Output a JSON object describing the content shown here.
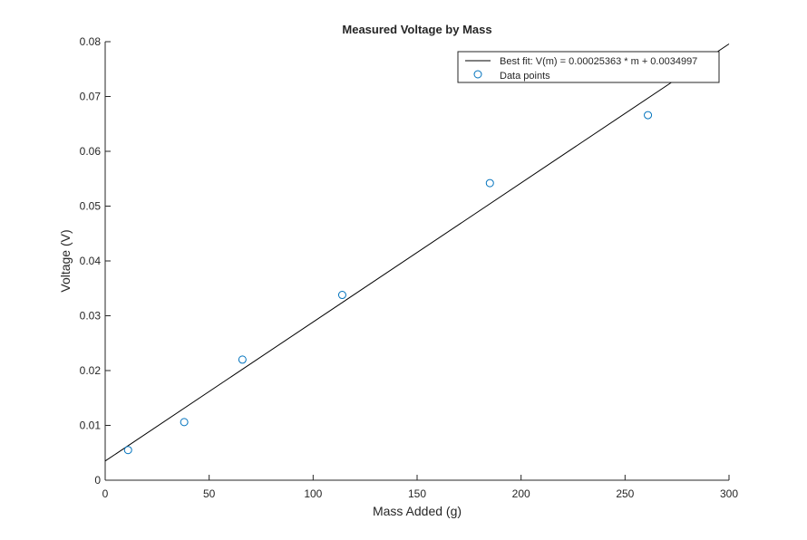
{
  "chart_data": {
    "type": "scatter",
    "title": "Measured Voltage by Mass",
    "xlabel": "Mass Added (g)",
    "ylabel": "Voltage (V)",
    "xlim": [
      0,
      300
    ],
    "ylim": [
      0,
      0.08
    ],
    "xticks": [
      0,
      50,
      100,
      150,
      200,
      250,
      300
    ],
    "xtick_labels": [
      "0",
      "50",
      "100",
      "150",
      "200",
      "250",
      "300"
    ],
    "yticks": [
      0,
      0.01,
      0.02,
      0.03,
      0.04,
      0.05,
      0.06,
      0.07,
      0.08
    ],
    "ytick_labels": [
      "0",
      "0.01",
      "0.02",
      "0.03",
      "0.04",
      "0.05",
      "0.06",
      "0.07",
      "0.08"
    ],
    "grid": false,
    "legend_position": "top-right",
    "series": [
      {
        "name": "Best fit: V(m) = 0.00025363 * m + 0.0034997",
        "kind": "line",
        "color": "#000000",
        "slope": 0.00025363,
        "intercept": 0.0034997
      },
      {
        "name": "Data points",
        "kind": "scatter",
        "marker": "circle",
        "color": "#0072BD",
        "x": [
          11,
          38,
          66,
          114,
          185,
          261
        ],
        "y": [
          0.0055,
          0.0106,
          0.022,
          0.0338,
          0.0542,
          0.0666
        ]
      }
    ]
  }
}
